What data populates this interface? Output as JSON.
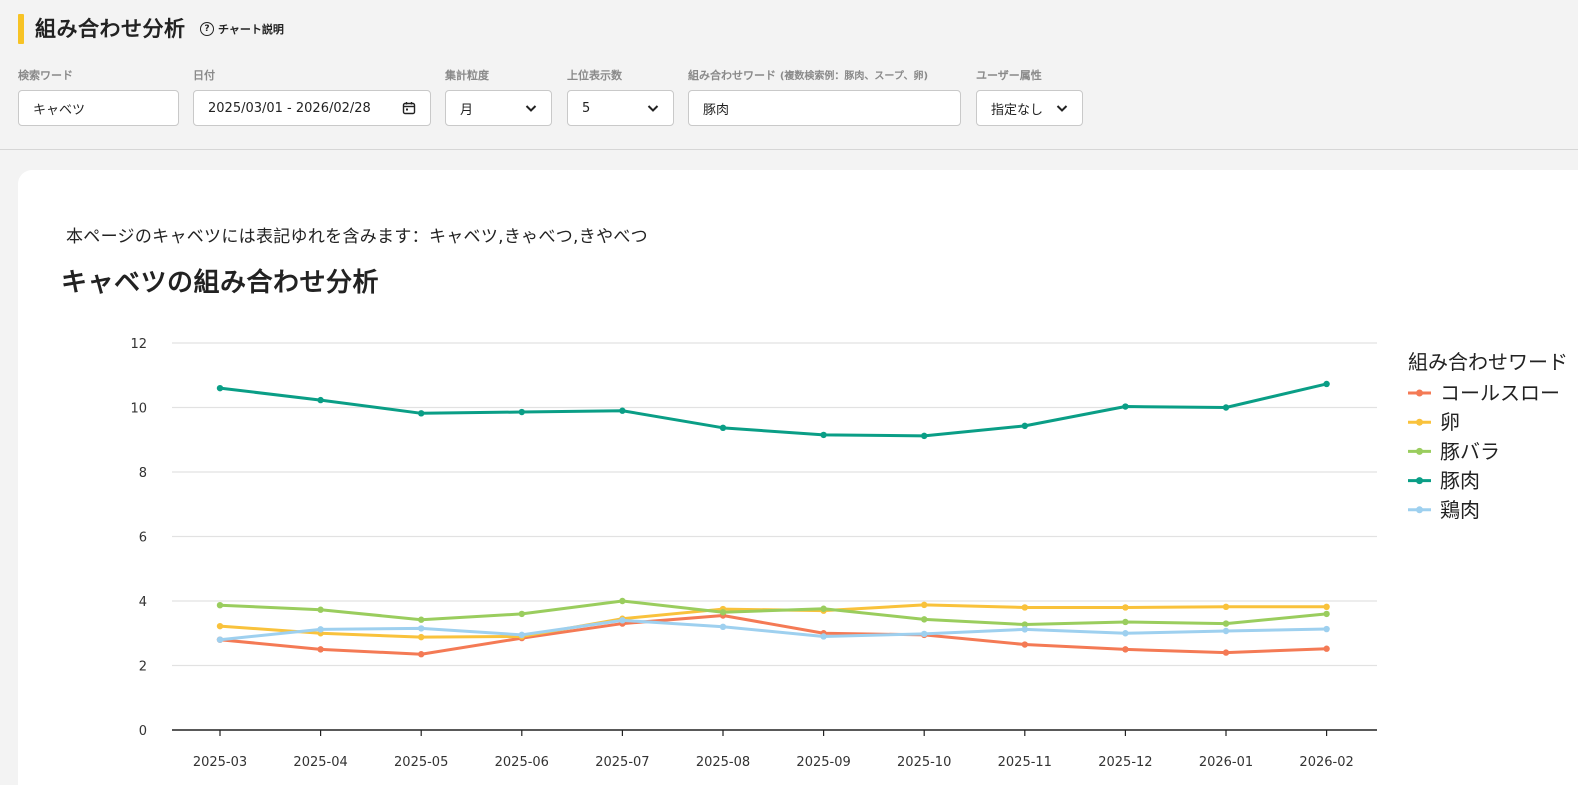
{
  "header": {
    "title": "組み合わせ分析",
    "help_label": "チャート説明"
  },
  "filters": {
    "search_word": {
      "label": "検索ワード",
      "value": "キャベツ"
    },
    "date": {
      "label": "日付",
      "value": "2025/03/01 - 2026/02/28"
    },
    "granularity": {
      "label": "集計粒度",
      "value": "月"
    },
    "top_count": {
      "label": "上位表示数",
      "value": "5"
    },
    "combo_word": {
      "label": "組み合わせワード",
      "hint": "(複数検索例：豚肉、スープ、卵)",
      "value": "豚肉"
    },
    "user_attr": {
      "label": "ユーザー属性",
      "value": "指定なし"
    }
  },
  "card": {
    "note": "本ページのキャベツには表記ゆれを含みます：キャベツ,きゃべつ,きやべつ",
    "chart_title": "キャベツの組み合わせ分析"
  },
  "chart_data": {
    "type": "line",
    "title": "キャベツの組み合わせ分析",
    "xlabel": "",
    "ylabel": "",
    "ylim": [
      0,
      12
    ],
    "yticks": [
      0,
      2,
      4,
      6,
      8,
      10,
      12
    ],
    "grid": true,
    "legend_title": "組み合わせワード",
    "legend_position": "right",
    "categories": [
      "2025-03",
      "2025-04",
      "2025-05",
      "2025-06",
      "2025-07",
      "2025-08",
      "2025-09",
      "2025-10",
      "2025-11",
      "2025-12",
      "2026-01",
      "2026-02"
    ],
    "series": [
      {
        "name": "コールスロー",
        "color": "#f47a55",
        "values": [
          2.8,
          2.5,
          2.35,
          2.85,
          3.3,
          3.55,
          3.0,
          2.95,
          2.65,
          2.5,
          2.4,
          2.52
        ]
      },
      {
        "name": "卵",
        "color": "#f9c23c",
        "values": [
          3.22,
          3.0,
          2.88,
          2.9,
          3.45,
          3.75,
          3.7,
          3.88,
          3.8,
          3.8,
          3.82,
          3.82
        ]
      },
      {
        "name": "豚バラ",
        "color": "#9acd5e",
        "values": [
          3.87,
          3.73,
          3.42,
          3.6,
          4.0,
          3.65,
          3.76,
          3.43,
          3.27,
          3.35,
          3.3,
          3.6
        ]
      },
      {
        "name": "豚肉",
        "color": "#0a9e86",
        "values": [
          10.6,
          10.23,
          9.82,
          9.86,
          9.9,
          9.37,
          9.15,
          9.12,
          9.43,
          10.03,
          10.0,
          10.73
        ]
      },
      {
        "name": "鶏肉",
        "color": "#9ed0ef",
        "values": [
          2.8,
          3.12,
          3.15,
          2.95,
          3.4,
          3.2,
          2.9,
          2.98,
          3.12,
          3.0,
          3.07,
          3.13
        ]
      }
    ]
  }
}
